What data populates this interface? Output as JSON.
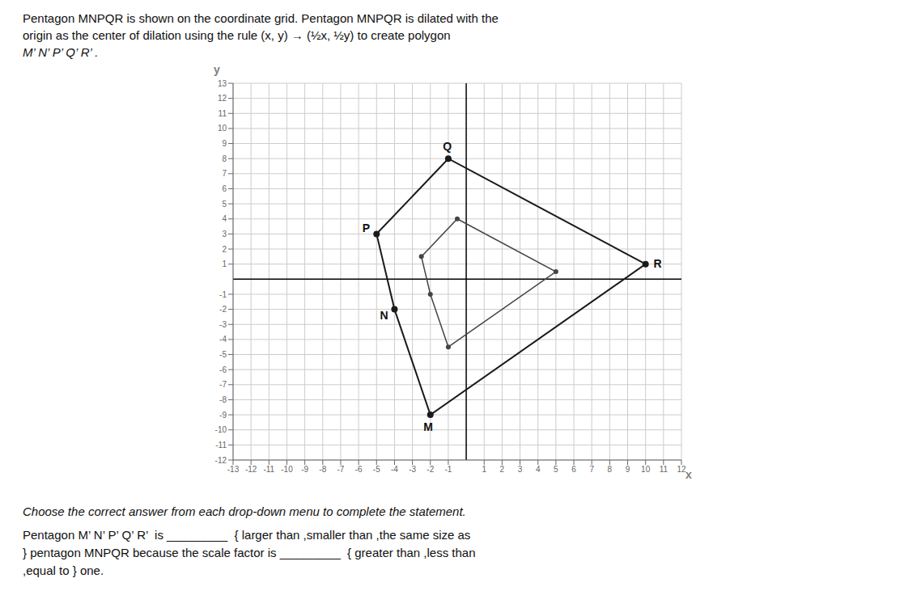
{
  "chart_data": {
    "type": "polygon",
    "title": [
      "Pentagon MNPQR is shown on the coordinate grid. Pentagon MNPQR is dilated with the",
      "origin as the center of dilation using the rule (x, y) → (½x, ½y) to create polygon",
      "M’ N’ P’ Q’ R’ ."
    ],
    "annotations": [
      "Choose the correct answer from each drop-down menu to complete the statement.",
      "Pentagon M’ N’ P’ Q’ R’  is _________  { larger than ,smaller than ,the same size as",
      "} pentagon MNPQR because the scale factor is _________  { greater than ,less than",
      ",equal to } one."
    ],
    "xlabel": "x",
    "ylabel": "y",
    "xlim": [
      -13,
      12
    ],
    "ylim": [
      -12,
      13
    ],
    "xticks": [
      -13,
      -12,
      -11,
      -10,
      -9,
      -8,
      -7,
      -6,
      -5,
      -4,
      -3,
      -2,
      -1,
      1,
      2,
      3,
      4,
      5,
      6,
      7,
      8,
      9,
      10,
      11,
      12
    ],
    "yticks": [
      -12,
      -11,
      -10,
      -9,
      -8,
      -7,
      -6,
      -5,
      -4,
      -3,
      -2,
      -1,
      1,
      2,
      3,
      4,
      5,
      6,
      7,
      8,
      9,
      10,
      11,
      12,
      13
    ],
    "grid": true,
    "series": [
      {
        "color": "#1a1a1a",
        "x": [
          -2,
          -4,
          -5,
          -1,
          10
        ],
        "values": [
          -9,
          -2,
          3,
          8,
          1
        ],
        "labels": [
          "M",
          "N",
          "P",
          "Q",
          "R"
        ]
      },
      {
        "color": "#444444",
        "x": [
          -1,
          -2,
          -2.5,
          -0.5,
          5
        ],
        "values": [
          -4.5,
          -1,
          1.5,
          4,
          0.5
        ]
      }
    ]
  }
}
